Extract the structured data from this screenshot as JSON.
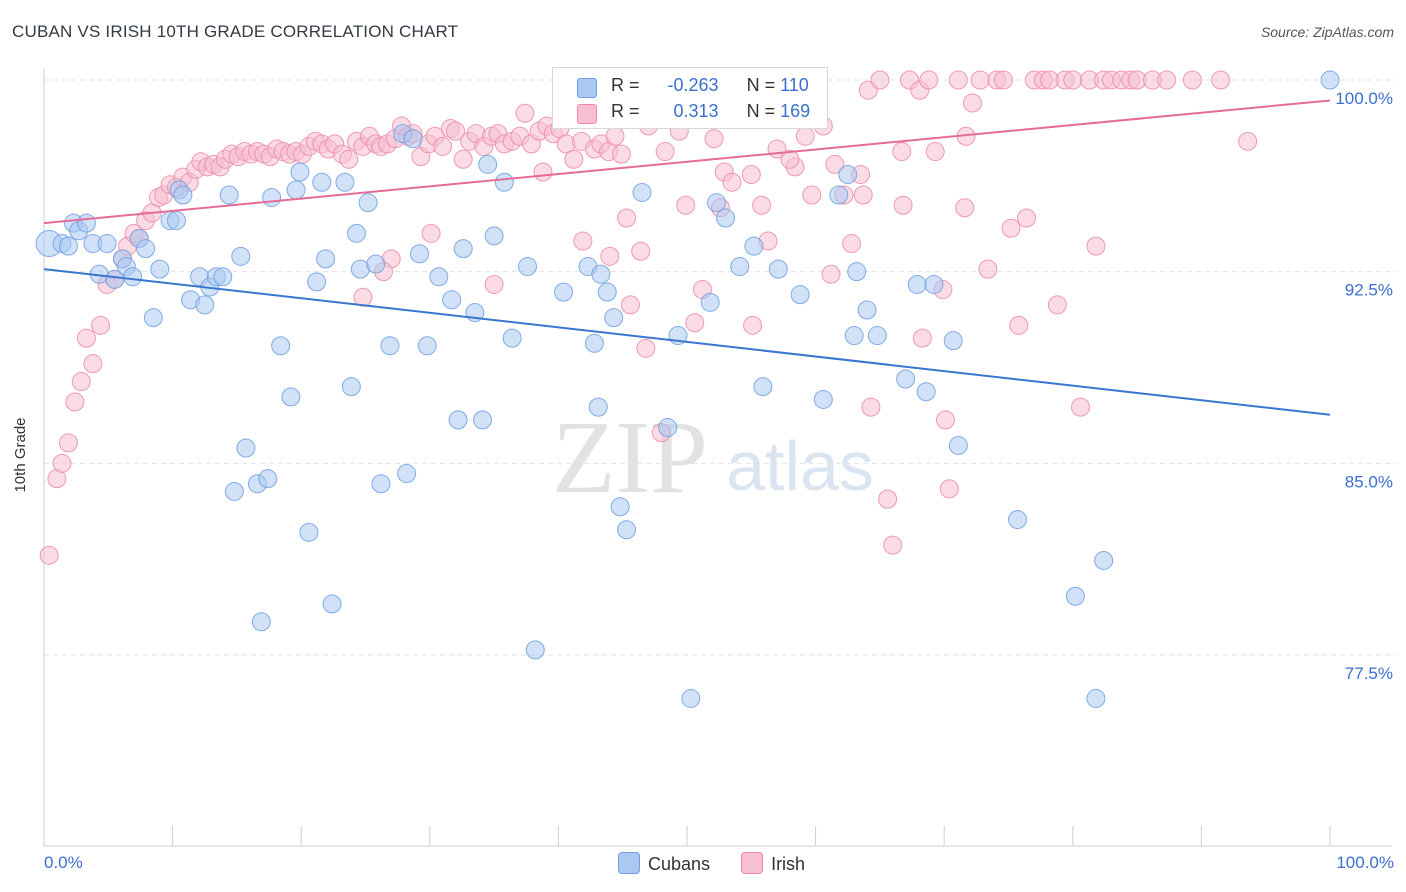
{
  "title": "CUBAN VS IRISH 10TH GRADE CORRELATION CHART",
  "source": "Source: ZipAtlas.com",
  "watermark": {
    "zip": "ZIP",
    "atlas": "atlas"
  },
  "legend": {
    "rows": [
      {
        "r_label": "R =",
        "r_value": "-0.263",
        "n_label": "N =",
        "n_value": "110",
        "color": "#a9c8f2",
        "border": "#6f9fe0"
      },
      {
        "r_label": "R =",
        "r_value": "0.313",
        "n_label": "N =",
        "n_value": "169",
        "color": "#f8bfd0",
        "border": "#ec8aa8"
      }
    ]
  },
  "bottom_legend": [
    {
      "label": "Cubans",
      "color": "#a9c8f2",
      "border": "#6f9fe0"
    },
    {
      "label": "Irish",
      "color": "#f8bfd0",
      "border": "#ec8aa8"
    }
  ],
  "chart_data": {
    "type": "scatter",
    "title": "CUBAN VS IRISH 10TH GRADE CORRELATION CHART",
    "xlabel": "",
    "ylabel": "10th Grade",
    "x_tick_labels": [
      "0.0%",
      "100.0%"
    ],
    "y_tick_labels": [
      "100.0%",
      "92.5%",
      "85.0%",
      "77.5%"
    ],
    "y_ticks": [
      100.0,
      92.5,
      85.0,
      77.5
    ],
    "xlim": [
      0,
      100
    ],
    "ylim": [
      70.5,
      101.2
    ],
    "grid": "horizontal dashed",
    "colors": {
      "cubans_point": "#a9c8f2",
      "cubans_line": "#3a76d0",
      "irish_point": "#f8bfd0",
      "irish_line": "#e46c96",
      "tick_label": "#3a6fd0"
    },
    "series": [
      {
        "name": "Cubans",
        "trend": {
          "x": [
            0,
            100
          ],
          "y": [
            92.6,
            86.9
          ]
        },
        "points": [
          [
            0.4,
            93.6
          ],
          [
            1.4,
            93.6
          ],
          [
            1.9,
            93.5
          ],
          [
            2.3,
            94.4
          ],
          [
            2.7,
            94.1
          ],
          [
            3.3,
            94.4
          ],
          [
            3.8,
            93.6
          ],
          [
            4.3,
            92.4
          ],
          [
            4.9,
            93.6
          ],
          [
            5.5,
            92.2
          ],
          [
            6.1,
            93.0
          ],
          [
            6.4,
            92.7
          ],
          [
            6.9,
            92.3
          ],
          [
            7.4,
            93.8
          ],
          [
            7.9,
            93.4
          ],
          [
            8.5,
            90.7
          ],
          [
            9.0,
            92.6
          ],
          [
            9.8,
            94.5
          ],
          [
            10.3,
            94.5
          ],
          [
            10.5,
            95.7
          ],
          [
            10.8,
            95.5
          ],
          [
            11.4,
            91.4
          ],
          [
            12.1,
            92.3
          ],
          [
            12.5,
            91.2
          ],
          [
            12.9,
            91.9
          ],
          [
            13.4,
            92.3
          ],
          [
            13.9,
            92.3
          ],
          [
            14.4,
            95.5
          ],
          [
            14.8,
            83.9
          ],
          [
            15.3,
            93.1
          ],
          [
            15.7,
            85.6
          ],
          [
            16.6,
            84.2
          ],
          [
            16.9,
            78.8
          ],
          [
            17.4,
            84.4
          ],
          [
            17.7,
            95.4
          ],
          [
            18.4,
            89.6
          ],
          [
            19.2,
            87.6
          ],
          [
            19.6,
            95.7
          ],
          [
            19.9,
            96.4
          ],
          [
            20.6,
            82.3
          ],
          [
            21.2,
            92.1
          ],
          [
            21.6,
            96.0
          ],
          [
            21.9,
            93.0
          ],
          [
            22.4,
            79.5
          ],
          [
            23.4,
            96.0
          ],
          [
            23.9,
            88.0
          ],
          [
            24.3,
            94.0
          ],
          [
            24.6,
            92.6
          ],
          [
            25.2,
            95.2
          ],
          [
            25.8,
            92.8
          ],
          [
            26.2,
            84.2
          ],
          [
            26.9,
            89.6
          ],
          [
            27.9,
            97.9
          ],
          [
            28.2,
            84.6
          ],
          [
            28.7,
            97.7
          ],
          [
            29.2,
            93.2
          ],
          [
            29.8,
            89.6
          ],
          [
            30.7,
            92.3
          ],
          [
            31.7,
            91.4
          ],
          [
            32.2,
            86.7
          ],
          [
            32.6,
            93.4
          ],
          [
            33.5,
            90.9
          ],
          [
            34.1,
            86.7
          ],
          [
            34.5,
            96.7
          ],
          [
            35.0,
            93.9
          ],
          [
            35.8,
            96.0
          ],
          [
            36.4,
            89.9
          ],
          [
            37.6,
            92.7
          ],
          [
            38.2,
            77.7
          ],
          [
            40.4,
            91.7
          ],
          [
            42.3,
            92.7
          ],
          [
            42.8,
            89.7
          ],
          [
            43.1,
            87.2
          ],
          [
            43.3,
            92.4
          ],
          [
            43.8,
            91.7
          ],
          [
            44.3,
            90.7
          ],
          [
            44.8,
            83.3
          ],
          [
            45.3,
            82.4
          ],
          [
            46.5,
            95.6
          ],
          [
            48.5,
            86.4
          ],
          [
            49.3,
            90.0
          ],
          [
            50.3,
            75.8
          ],
          [
            51.8,
            91.3
          ],
          [
            52.3,
            95.2
          ],
          [
            53.0,
            94.6
          ],
          [
            54.1,
            92.7
          ],
          [
            55.2,
            93.5
          ],
          [
            55.9,
            88.0
          ],
          [
            57.1,
            92.6
          ],
          [
            58.8,
            91.6
          ],
          [
            60.6,
            87.5
          ],
          [
            61.8,
            95.5
          ],
          [
            62.5,
            96.3
          ],
          [
            63.0,
            90.0
          ],
          [
            63.2,
            92.5
          ],
          [
            64.0,
            91.0
          ],
          [
            64.8,
            90.0
          ],
          [
            67.0,
            88.3
          ],
          [
            67.9,
            92.0
          ],
          [
            68.6,
            87.8
          ],
          [
            69.2,
            92.0
          ],
          [
            70.7,
            89.8
          ],
          [
            71.1,
            85.7
          ],
          [
            75.7,
            82.8
          ],
          [
            80.2,
            79.8
          ],
          [
            81.8,
            75.8
          ],
          [
            82.4,
            81.2
          ],
          [
            100.0,
            100.0
          ]
        ]
      },
      {
        "name": "Irish",
        "trend": {
          "x": [
            0,
            100
          ],
          "y": [
            94.4,
            99.2
          ]
        },
        "points": [
          [
            0.4,
            81.4
          ],
          [
            1.0,
            84.4
          ],
          [
            1.4,
            85.0
          ],
          [
            1.9,
            85.8
          ],
          [
            2.4,
            87.4
          ],
          [
            2.9,
            88.2
          ],
          [
            3.3,
            89.9
          ],
          [
            3.8,
            88.9
          ],
          [
            4.4,
            90.4
          ],
          [
            4.9,
            92.0
          ],
          [
            5.5,
            92.2
          ],
          [
            6.1,
            93.0
          ],
          [
            6.5,
            93.5
          ],
          [
            7.0,
            94.0
          ],
          [
            7.4,
            93.8
          ],
          [
            7.9,
            94.5
          ],
          [
            8.4,
            94.8
          ],
          [
            8.9,
            95.4
          ],
          [
            9.3,
            95.5
          ],
          [
            9.8,
            95.9
          ],
          [
            10.3,
            95.8
          ],
          [
            10.8,
            96.2
          ],
          [
            11.3,
            96.0
          ],
          [
            11.8,
            96.5
          ],
          [
            12.2,
            96.8
          ],
          [
            12.7,
            96.6
          ],
          [
            13.2,
            96.7
          ],
          [
            13.7,
            96.6
          ],
          [
            14.1,
            96.9
          ],
          [
            14.6,
            97.1
          ],
          [
            15.1,
            97.0
          ],
          [
            15.6,
            97.2
          ],
          [
            16.1,
            97.1
          ],
          [
            16.6,
            97.2
          ],
          [
            17.1,
            97.1
          ],
          [
            17.6,
            97.0
          ],
          [
            18.1,
            97.3
          ],
          [
            18.6,
            97.2
          ],
          [
            19.1,
            97.1
          ],
          [
            19.6,
            97.2
          ],
          [
            20.1,
            97.1
          ],
          [
            20.6,
            97.4
          ],
          [
            21.1,
            97.6
          ],
          [
            21.6,
            97.5
          ],
          [
            22.1,
            97.3
          ],
          [
            22.6,
            97.5
          ],
          [
            23.2,
            97.1
          ],
          [
            23.7,
            96.9
          ],
          [
            24.3,
            97.6
          ],
          [
            24.8,
            97.4
          ],
          [
            25.3,
            97.8
          ],
          [
            25.8,
            97.5
          ],
          [
            26.2,
            97.4
          ],
          [
            26.7,
            97.5
          ],
          [
            27.3,
            97.7
          ],
          [
            27.8,
            98.2
          ],
          [
            28.3,
            97.8
          ],
          [
            28.7,
            97.9
          ],
          [
            29.3,
            97.0
          ],
          [
            29.9,
            97.5
          ],
          [
            30.4,
            97.8
          ],
          [
            31.0,
            97.4
          ],
          [
            31.6,
            98.1
          ],
          [
            32.0,
            98.0
          ],
          [
            32.6,
            96.9
          ],
          [
            33.1,
            97.6
          ],
          [
            33.6,
            97.9
          ],
          [
            34.2,
            97.4
          ],
          [
            34.8,
            97.8
          ],
          [
            35.3,
            97.9
          ],
          [
            35.8,
            97.5
          ],
          [
            36.4,
            97.6
          ],
          [
            37.0,
            97.8
          ],
          [
            37.4,
            98.7
          ],
          [
            37.9,
            97.5
          ],
          [
            38.5,
            98.0
          ],
          [
            39.1,
            98.2
          ],
          [
            39.6,
            97.9
          ],
          [
            40.1,
            98.1
          ],
          [
            40.6,
            97.5
          ],
          [
            41.2,
            96.9
          ],
          [
            41.8,
            97.6
          ],
          [
            42.3,
            98.6
          ],
          [
            42.8,
            97.3
          ],
          [
            43.3,
            97.5
          ],
          [
            43.9,
            97.2
          ],
          [
            44.4,
            97.8
          ],
          [
            44.9,
            97.1
          ],
          [
            45.3,
            94.6
          ],
          [
            45.9,
            98.9
          ],
          [
            46.4,
            93.3
          ],
          [
            47.0,
            98.2
          ],
          [
            47.6,
            98.7
          ],
          [
            48.3,
            97.2
          ],
          [
            48.8,
            99.1
          ],
          [
            49.4,
            98.0
          ],
          [
            50.0,
            99.2
          ],
          [
            50.6,
            90.5
          ],
          [
            51.2,
            91.8
          ],
          [
            52.1,
            97.7
          ],
          [
            52.9,
            96.4
          ],
          [
            53.5,
            96.0
          ],
          [
            54.3,
            99.1
          ],
          [
            55.0,
            96.3
          ],
          [
            55.8,
            95.1
          ],
          [
            56.3,
            93.7
          ],
          [
            57.0,
            97.3
          ],
          [
            57.6,
            99.4
          ],
          [
            58.4,
            96.6
          ],
          [
            59.1,
            100.0
          ],
          [
            59.7,
            95.5
          ],
          [
            60.6,
            98.2
          ],
          [
            61.5,
            96.7
          ],
          [
            62.2,
            95.5
          ],
          [
            62.8,
            93.6
          ],
          [
            63.5,
            96.3
          ],
          [
            64.1,
            99.6
          ],
          [
            65.0,
            100.0
          ],
          [
            65.6,
            83.6
          ],
          [
            66.0,
            81.8
          ],
          [
            66.7,
            97.2
          ],
          [
            67.3,
            100.0
          ],
          [
            68.1,
            99.6
          ],
          [
            68.8,
            100.0
          ],
          [
            69.3,
            97.2
          ],
          [
            69.9,
            91.8
          ],
          [
            70.4,
            84.0
          ],
          [
            71.1,
            100.0
          ],
          [
            71.7,
            97.8
          ],
          [
            72.2,
            99.1
          ],
          [
            72.8,
            100.0
          ],
          [
            73.4,
            92.6
          ],
          [
            74.1,
            100.0
          ],
          [
            74.6,
            100.0
          ],
          [
            75.2,
            94.2
          ],
          [
            75.8,
            90.4
          ],
          [
            76.4,
            94.6
          ],
          [
            77.0,
            100.0
          ],
          [
            77.7,
            100.0
          ],
          [
            78.2,
            100.0
          ],
          [
            78.8,
            91.2
          ],
          [
            79.4,
            100.0
          ],
          [
            80.0,
            100.0
          ],
          [
            80.6,
            87.2
          ],
          [
            81.3,
            100.0
          ],
          [
            81.8,
            93.5
          ],
          [
            82.4,
            100.0
          ],
          [
            83.0,
            100.0
          ],
          [
            83.8,
            100.0
          ],
          [
            84.5,
            100.0
          ],
          [
            85.0,
            100.0
          ],
          [
            86.2,
            100.0
          ],
          [
            87.3,
            100.0
          ],
          [
            89.3,
            100.0
          ],
          [
            91.5,
            100.0
          ],
          [
            93.6,
            97.6
          ],
          [
            52.6,
            95.0
          ],
          [
            44.0,
            93.1
          ],
          [
            38.8,
            96.4
          ],
          [
            35.0,
            92.0
          ],
          [
            30.1,
            94.0
          ],
          [
            27.0,
            93.0
          ],
          [
            26.4,
            92.5
          ],
          [
            24.8,
            91.5
          ],
          [
            68.3,
            89.9
          ],
          [
            70.1,
            86.7
          ],
          [
            61.2,
            92.4
          ],
          [
            58.0,
            96.9
          ],
          [
            63.7,
            95.5
          ],
          [
            66.8,
            95.1
          ],
          [
            64.3,
            87.2
          ],
          [
            55.1,
            90.4
          ],
          [
            48.0,
            86.2
          ],
          [
            46.8,
            89.5
          ],
          [
            45.6,
            91.2
          ],
          [
            49.9,
            95.1
          ],
          [
            71.6,
            95.0
          ],
          [
            59.2,
            97.8
          ],
          [
            41.9,
            93.7
          ]
        ]
      }
    ]
  }
}
